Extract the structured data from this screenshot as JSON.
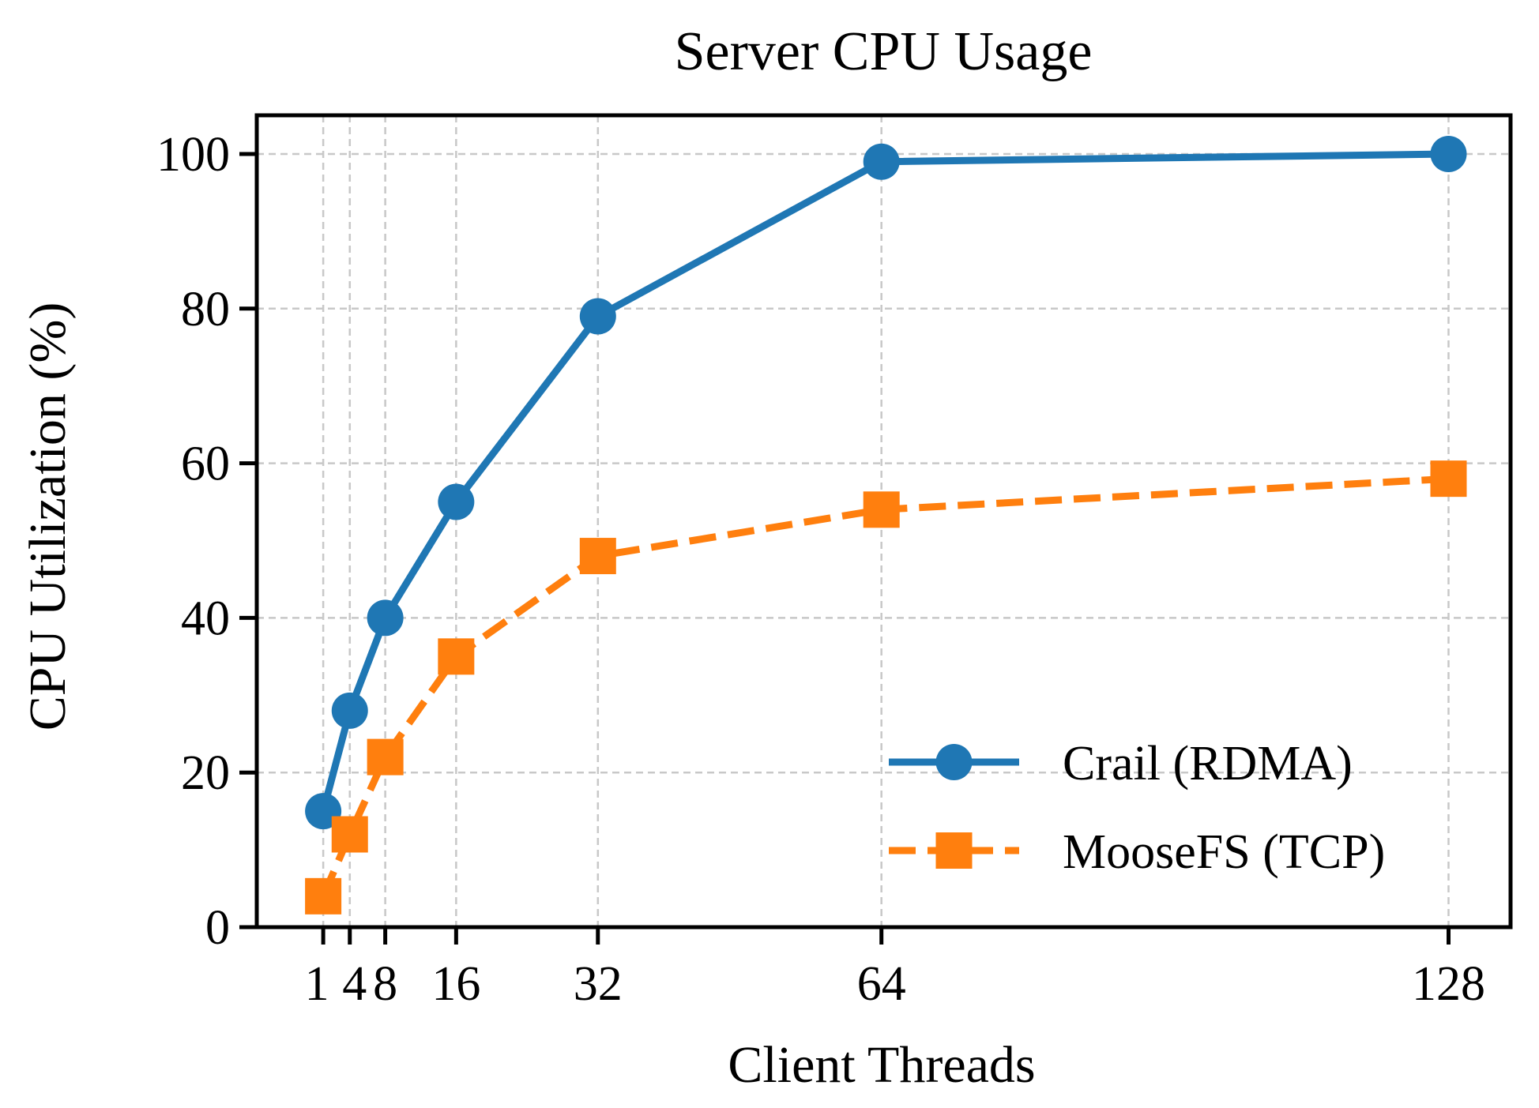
{
  "chart_data": {
    "type": "line",
    "title": "Server CPU Usage",
    "xlabel": "Client Threads",
    "ylabel": "CPU Utilization (%)",
    "x": [
      1,
      4,
      8,
      16,
      32,
      64,
      128
    ],
    "x_tick_labels": [
      "1",
      "4",
      "8",
      "16",
      "32",
      "64",
      "128"
    ],
    "y_ticks": [
      0,
      20,
      40,
      60,
      80,
      100
    ],
    "xlim": [
      -6.5,
      135
    ],
    "ylim": [
      0,
      105
    ],
    "grid": true,
    "legend_position": "lower-right",
    "series": [
      {
        "name": "Crail (RDMA)",
        "values": [
          15,
          28,
          40,
          55,
          79,
          99,
          100
        ],
        "color": "#1f77b4",
        "marker": "circle",
        "line_style": "solid"
      },
      {
        "name": "MooseFS (TCP)",
        "values": [
          4,
          12,
          22,
          35,
          48,
          54,
          58
        ],
        "color": "#ff7f0e",
        "marker": "square",
        "line_style": "dashed"
      }
    ]
  }
}
